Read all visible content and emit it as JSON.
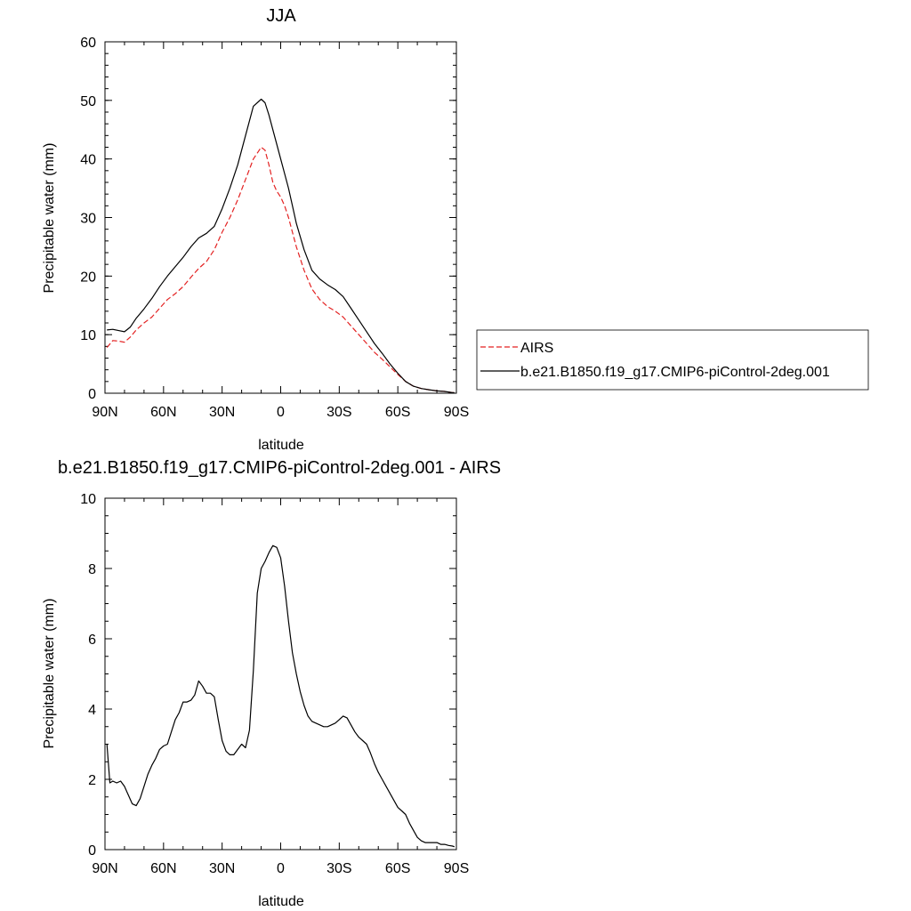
{
  "chart_data": [
    {
      "type": "line",
      "title": "JJA",
      "xlabel": "latitude",
      "ylabel": "Precipitable water (mm)",
      "xlim": [
        90,
        -90
      ],
      "ylim": [
        0,
        60
      ],
      "xticks": [
        {
          "value": 90,
          "label": "90N"
        },
        {
          "value": 60,
          "label": "60N"
        },
        {
          "value": 30,
          "label": "30N"
        },
        {
          "value": 0,
          "label": "0"
        },
        {
          "value": -30,
          "label": "30S"
        },
        {
          "value": -60,
          "label": "60S"
        },
        {
          "value": -90,
          "label": "90S"
        }
      ],
      "yticks": [
        0,
        10,
        20,
        30,
        40,
        50,
        60
      ],
      "legend": "right",
      "series": [
        {
          "name": "AIRS",
          "color": "#e32222",
          "dash": "dashed",
          "x": [
            89,
            86,
            83,
            80,
            77,
            74,
            70,
            66,
            62,
            58,
            54,
            50,
            46,
            42,
            38,
            34,
            30,
            26,
            22,
            18,
            14,
            10,
            8,
            6,
            4,
            2,
            0,
            -2,
            -4,
            -6,
            -8,
            -12,
            -16,
            -20,
            -24,
            -28,
            -32,
            -36,
            -40,
            -44,
            -48,
            -52,
            -56,
            -60,
            -64,
            -68,
            -72,
            -76,
            -80,
            -84,
            -88,
            -89
          ],
          "y": [
            7.8,
            9.0,
            8.9,
            8.7,
            9.6,
            10.8,
            12.0,
            13.0,
            14.5,
            16.0,
            17.0,
            18.2,
            19.8,
            21.3,
            22.5,
            24.5,
            27.5,
            30.0,
            33.0,
            36.5,
            40.0,
            42.0,
            41.5,
            39.0,
            36.0,
            34.5,
            33.5,
            32.0,
            30.0,
            27.5,
            25.0,
            21.0,
            17.8,
            16.0,
            14.8,
            14.0,
            13.0,
            11.5,
            10.0,
            8.5,
            7.0,
            5.8,
            4.5,
            3.2,
            2.0,
            1.2,
            0.8,
            0.6,
            0.4,
            0.3,
            0.1,
            0.1
          ]
        },
        {
          "name": "b.e21.B1850.f19_g17.CMIP6-piControl-2deg.001",
          "color": "#000000",
          "dash": "solid",
          "x": [
            89,
            86,
            83,
            80,
            77,
            74,
            70,
            66,
            62,
            58,
            54,
            50,
            46,
            42,
            38,
            34,
            30,
            26,
            22,
            18,
            14,
            10,
            8,
            6,
            4,
            2,
            0,
            -2,
            -4,
            -6,
            -8,
            -12,
            -16,
            -20,
            -24,
            -28,
            -32,
            -36,
            -40,
            -44,
            -48,
            -52,
            -56,
            -60,
            -64,
            -68,
            -72,
            -76,
            -80,
            -84,
            -88,
            -89
          ],
          "y": [
            10.8,
            10.9,
            10.7,
            10.5,
            11.3,
            12.8,
            14.4,
            16.2,
            18.2,
            20.0,
            21.6,
            23.2,
            25.0,
            26.5,
            27.3,
            28.5,
            31.5,
            35.0,
            39.0,
            44.0,
            49.0,
            50.2,
            49.6,
            47.5,
            45.0,
            42.5,
            40.0,
            37.5,
            35.0,
            32.0,
            29.0,
            24.5,
            21.0,
            19.5,
            18.5,
            17.7,
            16.5,
            14.5,
            12.5,
            10.5,
            8.5,
            6.8,
            5.0,
            3.4,
            2.0,
            1.2,
            0.8,
            0.6,
            0.4,
            0.3,
            0.1,
            0.1
          ]
        }
      ]
    },
    {
      "type": "line",
      "title": "b.e21.B1850.f19_g17.CMIP6-piControl-2deg.001 - AIRS",
      "xlabel": "latitude",
      "ylabel": "Precipitable water (mm)",
      "xlim": [
        90,
        -90
      ],
      "ylim": [
        0,
        10
      ],
      "xticks": [
        {
          "value": 90,
          "label": "90N"
        },
        {
          "value": 60,
          "label": "60N"
        },
        {
          "value": 30,
          "label": "30N"
        },
        {
          "value": 0,
          "label": "0"
        },
        {
          "value": -30,
          "label": "30S"
        },
        {
          "value": -60,
          "label": "60S"
        },
        {
          "value": -90,
          "label": "90S"
        }
      ],
      "yticks": [
        0,
        2,
        4,
        6,
        8,
        10
      ],
      "series": [
        {
          "color": "#000000",
          "dash": "solid",
          "x": [
            89,
            87.5,
            86,
            84,
            82,
            80,
            78,
            76,
            74,
            72,
            70,
            68,
            66,
            64,
            62,
            60,
            58,
            56,
            54,
            52,
            50,
            48,
            46,
            44,
            42,
            40,
            38,
            36,
            34,
            32,
            30,
            28,
            26,
            24,
            22,
            20,
            18,
            16,
            14,
            12,
            10,
            8,
            6,
            4,
            2,
            0,
            -2,
            -4,
            -6,
            -8,
            -10,
            -12,
            -14,
            -16,
            -18,
            -20,
            -22,
            -24,
            -26,
            -28,
            -30,
            -32,
            -34,
            -36,
            -38,
            -40,
            -42,
            -44,
            -46,
            -48,
            -50,
            -52,
            -54,
            -56,
            -58,
            -60,
            -62,
            -64,
            -66,
            -68,
            -70,
            -72,
            -74,
            -76,
            -78,
            -80,
            -82,
            -84,
            -86,
            -88,
            -89
          ],
          "y": [
            3.0,
            1.9,
            1.95,
            1.9,
            1.95,
            1.8,
            1.55,
            1.3,
            1.25,
            1.45,
            1.8,
            2.15,
            2.4,
            2.6,
            2.85,
            2.95,
            3.0,
            3.35,
            3.7,
            3.9,
            4.2,
            4.2,
            4.25,
            4.4,
            4.8,
            4.65,
            4.45,
            4.45,
            4.35,
            3.7,
            3.1,
            2.8,
            2.7,
            2.7,
            2.85,
            3.0,
            2.9,
            3.4,
            5.1,
            7.3,
            8.0,
            8.2,
            8.45,
            8.65,
            8.6,
            8.3,
            7.5,
            6.5,
            5.6,
            5.0,
            4.5,
            4.1,
            3.8,
            3.65,
            3.6,
            3.55,
            3.5,
            3.5,
            3.55,
            3.6,
            3.7,
            3.8,
            3.75,
            3.55,
            3.35,
            3.2,
            3.1,
            3.0,
            2.75,
            2.45,
            2.2,
            2.0,
            1.8,
            1.6,
            1.4,
            1.2,
            1.1,
            1.0,
            0.75,
            0.55,
            0.35,
            0.25,
            0.2,
            0.2,
            0.2,
            0.2,
            0.15,
            0.15,
            0.12,
            0.1,
            0.08
          ]
        }
      ]
    }
  ]
}
